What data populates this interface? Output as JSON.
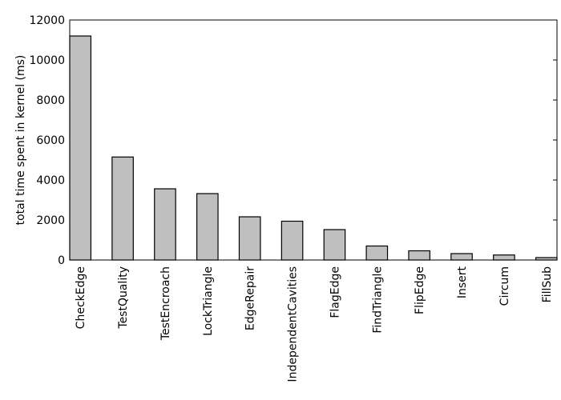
{
  "chart_data": {
    "type": "bar",
    "ylabel": "total time spent in kernel (ms)",
    "categories": [
      "CheckEdge",
      "TestQuality",
      "TestEncroach",
      "LockTriangle",
      "EdgeRepair",
      "IndependentCavities",
      "FlagEdge",
      "FindTriangle",
      "FlipEdge",
      "Insert",
      "Circum",
      "FillSub"
    ],
    "values": [
      11200,
      5150,
      3560,
      3320,
      2160,
      1940,
      1520,
      700,
      460,
      320,
      250,
      120
    ],
    "color": "#bfbfbf",
    "ylim": [
      0,
      12000
    ],
    "yticks": [
      0,
      2000,
      4000,
      6000,
      8000,
      10000,
      12000
    ],
    "grid": false
  }
}
